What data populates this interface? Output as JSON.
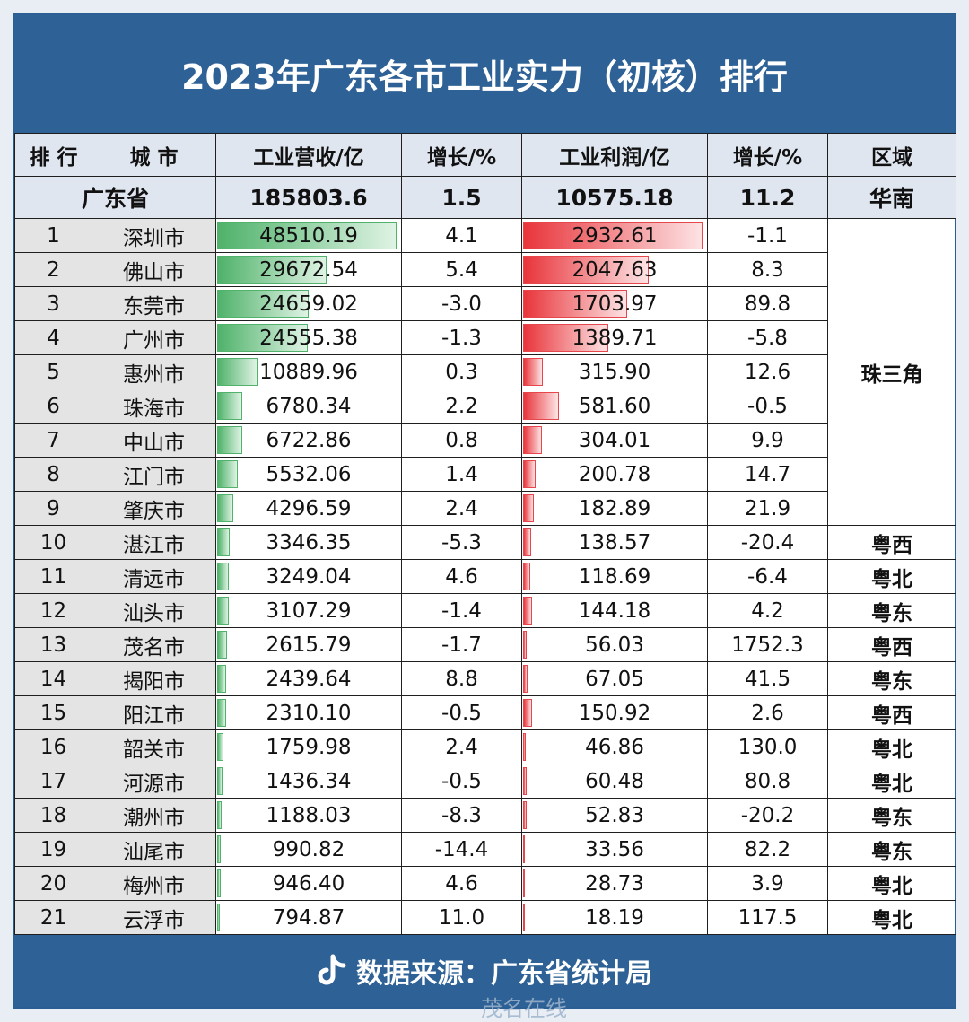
{
  "title": "2023年广东各市工业实力（初核）排行",
  "headers": [
    "排 行",
    "城 市",
    "工业营收/亿",
    "增长/%",
    "工业利润/亿",
    "增长/%",
    "区域"
  ],
  "total": {
    "name": "广东省",
    "revenue": "185803.6",
    "rev_growth": "1.5",
    "profit": "10575.18",
    "profit_growth": "11.2",
    "region": "华南"
  },
  "footer": {
    "source": "数据来源：广东省统计局",
    "watermark": "茂名在线"
  },
  "colors": {
    "header_bg": "#2e6195",
    "revenue_bar": "#4fb26a",
    "profit_bar": "#e8353b",
    "negative_text": "#c4261f"
  },
  "chart_data": {
    "type": "table",
    "title": "2023年广东各市工业实力（初核）排行",
    "columns": [
      "排 行",
      "城 市",
      "工业营收/亿",
      "增长/%",
      "工业利润/亿",
      "增长/%",
      "区域"
    ],
    "rows": [
      {
        "rank": "1",
        "city": "深圳市",
        "revenue": 48510.19,
        "rev_growth": "4.1",
        "profit": 2932.61,
        "profit_growth": "-1.1"
      },
      {
        "rank": "2",
        "city": "佛山市",
        "revenue": 29672.54,
        "rev_growth": "5.4",
        "profit": 2047.63,
        "profit_growth": "8.3"
      },
      {
        "rank": "3",
        "city": "东莞市",
        "revenue": 24659.02,
        "rev_growth": "-3.0",
        "profit": 1703.97,
        "profit_growth": "89.8"
      },
      {
        "rank": "4",
        "city": "广州市",
        "revenue": 24555.38,
        "rev_growth": "-1.3",
        "profit": 1389.71,
        "profit_growth": "-5.8"
      },
      {
        "rank": "5",
        "city": "惠州市",
        "revenue": 10889.96,
        "rev_growth": "0.3",
        "profit": 315.9,
        "profit_growth": "12.6"
      },
      {
        "rank": "6",
        "city": "珠海市",
        "revenue": 6780.34,
        "rev_growth": "2.2",
        "profit": 581.6,
        "profit_growth": "-0.5"
      },
      {
        "rank": "7",
        "city": "中山市",
        "revenue": 6722.86,
        "rev_growth": "0.8",
        "profit": 304.01,
        "profit_growth": "9.9"
      },
      {
        "rank": "8",
        "city": "江门市",
        "revenue": 5532.06,
        "rev_growth": "1.4",
        "profit": 200.78,
        "profit_growth": "14.7"
      },
      {
        "rank": "9",
        "city": "肇庆市",
        "revenue": 4296.59,
        "rev_growth": "2.4",
        "profit": 182.89,
        "profit_growth": "21.9"
      },
      {
        "rank": "10",
        "city": "湛江市",
        "revenue": 3346.35,
        "rev_growth": "-5.3",
        "profit": 138.57,
        "profit_growth": "-20.4",
        "region": "粤西"
      },
      {
        "rank": "11",
        "city": "清远市",
        "revenue": 3249.04,
        "rev_growth": "4.6",
        "profit": 118.69,
        "profit_growth": "-6.4",
        "region": "粤北"
      },
      {
        "rank": "12",
        "city": "汕头市",
        "revenue": 3107.29,
        "rev_growth": "-1.4",
        "profit": 144.18,
        "profit_growth": "4.2",
        "region": "粤东"
      },
      {
        "rank": "13",
        "city": "茂名市",
        "revenue": 2615.79,
        "rev_growth": "-1.7",
        "profit": 56.03,
        "profit_growth": "1752.3",
        "region": "粤西"
      },
      {
        "rank": "14",
        "city": "揭阳市",
        "revenue": 2439.64,
        "rev_growth": "8.8",
        "profit": 67.05,
        "profit_growth": "41.5",
        "region": "粤东"
      },
      {
        "rank": "15",
        "city": "阳江市",
        "revenue": 2310.1,
        "rev_growth": "-0.5",
        "profit": 150.92,
        "profit_growth": "2.6",
        "region": "粤西"
      },
      {
        "rank": "16",
        "city": "韶关市",
        "revenue": 1759.98,
        "rev_growth": "2.4",
        "profit": 46.86,
        "profit_growth": "130.0",
        "region": "粤北"
      },
      {
        "rank": "17",
        "city": "河源市",
        "revenue": 1436.34,
        "rev_growth": "-0.5",
        "profit": 60.48,
        "profit_growth": "80.8",
        "region": "粤北"
      },
      {
        "rank": "18",
        "city": "潮州市",
        "revenue": 1188.03,
        "rev_growth": "-8.3",
        "profit": 52.83,
        "profit_growth": "-20.2",
        "region": "粤东"
      },
      {
        "rank": "19",
        "city": "汕尾市",
        "revenue": 990.82,
        "rev_growth": "-14.4",
        "profit": 33.56,
        "profit_growth": "82.2",
        "region": "粤东"
      },
      {
        "rank": "20",
        "city": "梅州市",
        "revenue": 946.4,
        "rev_growth": "4.6",
        "profit": 28.73,
        "profit_growth": "3.9",
        "region": "粤北"
      },
      {
        "rank": "21",
        "city": "云浮市",
        "revenue": 794.87,
        "rev_growth": "11.0",
        "profit": 18.19,
        "profit_growth": "117.5",
        "region": "粤北"
      }
    ],
    "merged_region": {
      "label": "珠三角",
      "rows": 9
    }
  }
}
